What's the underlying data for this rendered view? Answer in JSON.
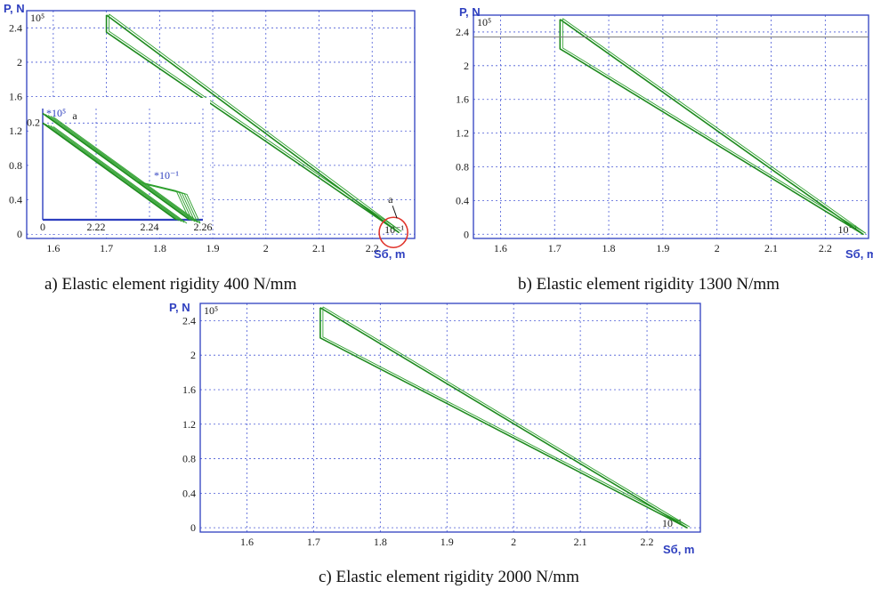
{
  "chart_data": [
    {
      "type": "line",
      "panel": "a",
      "ylabel": "P, N",
      "xlabel": "Sб, m",
      "y_exponent": "10⁵",
      "x_exponent": "10⁻¹",
      "xlim": [
        1.55,
        2.28
      ],
      "ylim": [
        -0.05,
        2.6
      ],
      "x_ticks": [
        "1.6",
        "1.7",
        "1.8",
        "1.9",
        "2",
        "2.1",
        "2.2"
      ],
      "y_ticks": [
        "0",
        "0.4",
        "0.8",
        "1.2",
        "1.6",
        "2",
        "2.4"
      ],
      "grid": true,
      "series": [
        {
          "x": [
            1.7,
            1.7,
            2.25,
            1.7,
            1.7
          ],
          "y": [
            2.55,
            2.35,
            0.02,
            2.55,
            2.55
          ]
        }
      ],
      "annotation": "a",
      "caption": "a) Elastic element rigidity 400 N/mm",
      "inset": {
        "label": "a",
        "y_exponent": "*10⁵",
        "x_exponent": "*10⁻¹",
        "xlim": [
          2.2,
          2.26
        ],
        "ylim": [
          0,
          0.23
        ],
        "x_ticks": [
          "0",
          "2.22",
          "2.24",
          "2.26"
        ],
        "y_ticks": [
          "0.2"
        ],
        "series": [
          {
            "x": [
              2.2,
              2.255
            ],
            "y": [
              0.22,
              0.0
            ]
          },
          {
            "x": [
              2.2,
              2.25
            ],
            "y": [
              0.2,
              0.0
            ]
          },
          {
            "x": [
              2.235,
              2.25,
              2.255
            ],
            "y": [
              0.08,
              0.06,
              0.0
            ]
          }
        ]
      }
    },
    {
      "type": "line",
      "panel": "b",
      "ylabel": "P, N",
      "xlabel": "Sб, m",
      "y_exponent": "10⁵",
      "x_exponent": "10⁻¹",
      "xlim": [
        1.55,
        2.28
      ],
      "ylim": [
        -0.05,
        2.6
      ],
      "x_ticks": [
        "1.6",
        "1.7",
        "1.8",
        "1.9",
        "2",
        "2.1",
        "2.2"
      ],
      "y_ticks": [
        "0",
        "0.4",
        "0.8",
        "1.2",
        "1.6",
        "2",
        "2.4"
      ],
      "grid": true,
      "series": [
        {
          "x": [
            1.71,
            1.71,
            2.27,
            1.71,
            1.71
          ],
          "y": [
            2.55,
            2.2,
            0.0,
            2.55,
            2.55
          ]
        }
      ],
      "caption": "b) Elastic element rigidity 1300 N/mm"
    },
    {
      "type": "line",
      "panel": "c",
      "ylabel": "P, N",
      "xlabel": "Sб, m",
      "y_exponent": "10⁵",
      "x_exponent": "10⁻¹",
      "xlim": [
        1.53,
        2.28
      ],
      "ylim": [
        -0.05,
        2.6
      ],
      "x_ticks": [
        "1.6",
        "1.7",
        "1.8",
        "1.9",
        "2",
        "2.1",
        "2.2"
      ],
      "y_ticks": [
        "0",
        "0.4",
        "0.8",
        "1.2",
        "1.6",
        "2",
        "2.4"
      ],
      "grid": true,
      "series": [
        {
          "x": [
            1.71,
            1.71,
            2.26,
            1.71,
            1.71
          ],
          "y": [
            2.55,
            2.2,
            0.0,
            2.55,
            2.55
          ]
        }
      ],
      "caption": "c) Elastic element rigidity 2000 N/mm"
    }
  ],
  "colors": {
    "axis": "#2e3fbf",
    "grid": "#4b5bd6",
    "curve": "#1e8a1e",
    "highlight": "#e0332b"
  }
}
